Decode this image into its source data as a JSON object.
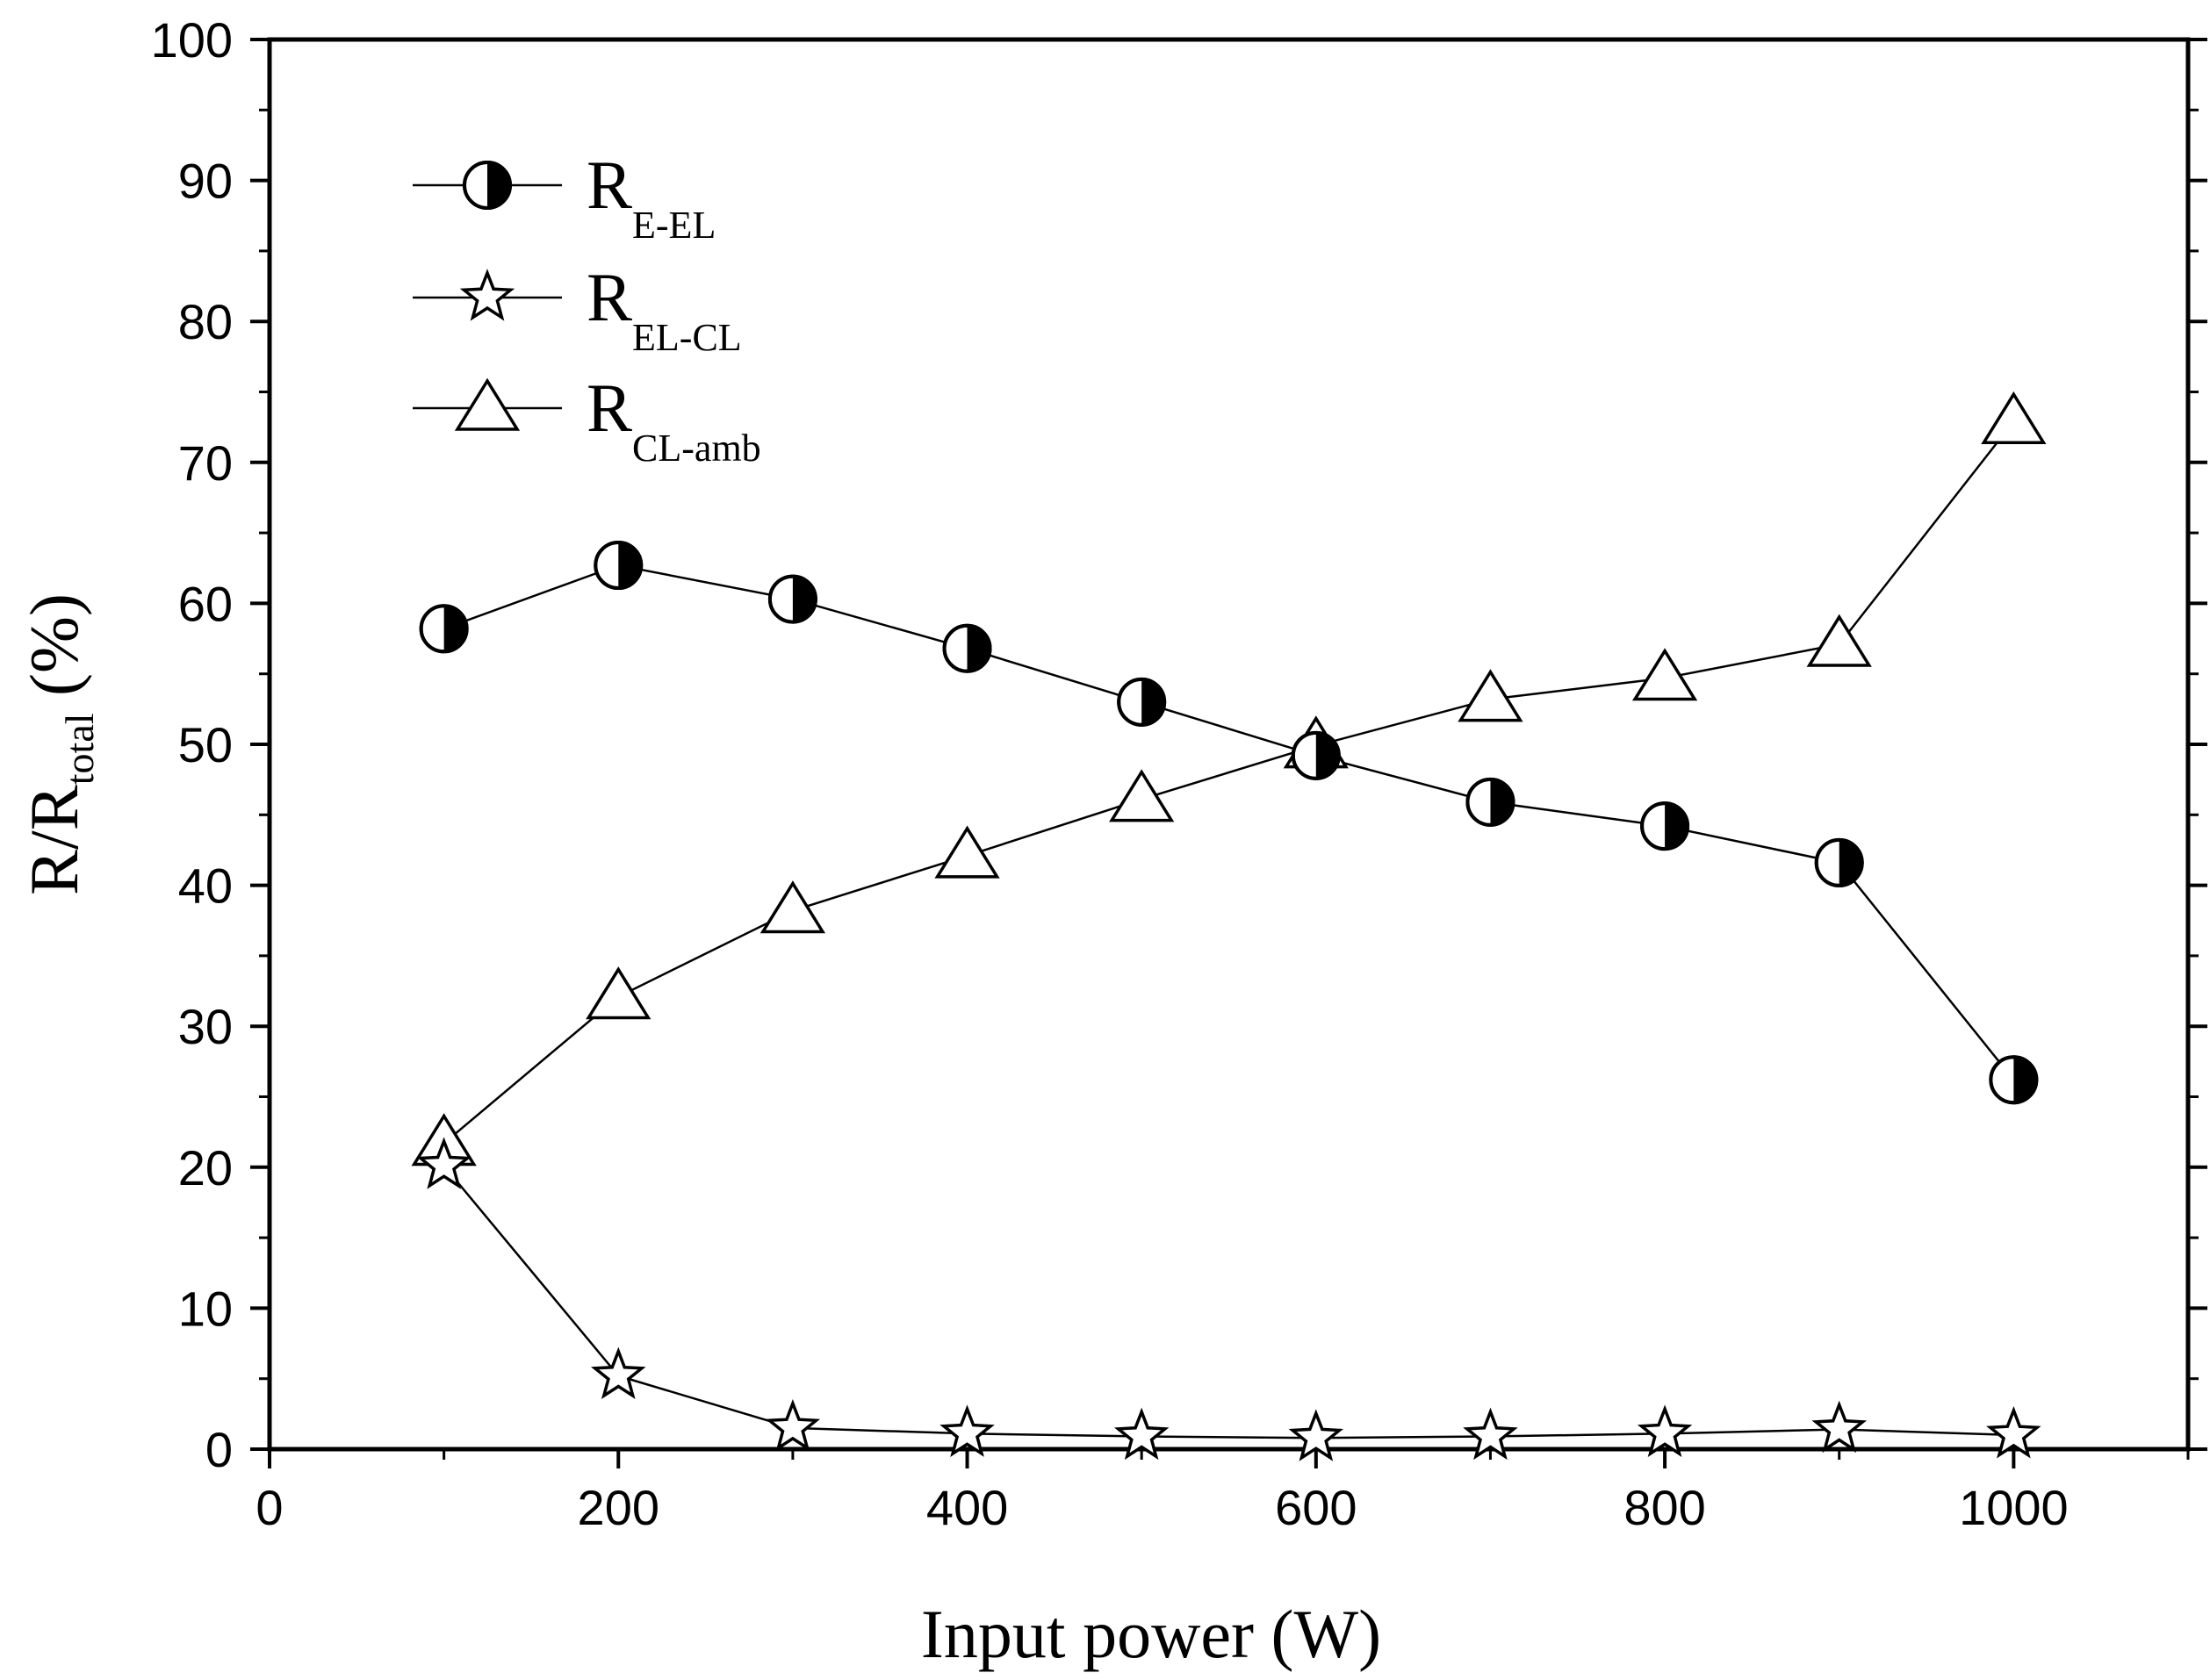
{
  "chart_data": {
    "type": "line",
    "title": "",
    "xlabel": "Input power (W)",
    "ylabel": {
      "prefix": "R/R",
      "subscript": "total",
      "suffix": " (%)"
    },
    "xlim": [
      0,
      1100
    ],
    "ylim": [
      0,
      100
    ],
    "x_ticks": [
      0,
      200,
      400,
      600,
      800,
      1000
    ],
    "y_ticks": [
      0,
      10,
      20,
      30,
      40,
      50,
      60,
      70,
      80,
      90,
      100
    ],
    "legend_position": "top-left",
    "x": [
      100,
      200,
      300,
      400,
      500,
      600,
      700,
      800,
      900,
      1000
    ],
    "series": [
      {
        "name": "R_E-EL",
        "label_main": "R",
        "label_sub": "E-EL",
        "marker": "half-filled-circle",
        "values": [
          58.2,
          62.7,
          60.3,
          56.8,
          53.0,
          49.2,
          45.9,
          44.2,
          41.6,
          26.2
        ]
      },
      {
        "name": "R_EL-CL",
        "label_main": "R",
        "label_sub": "EL-CL",
        "marker": "open-star",
        "values": [
          20.1,
          5.2,
          1.5,
          1.1,
          0.9,
          0.8,
          0.9,
          1.1,
          1.4,
          1.0
        ]
      },
      {
        "name": "R_CL-amb",
        "label_main": "R",
        "label_sub": "CL-amb",
        "marker": "open-triangle",
        "values": [
          21.7,
          32.1,
          38.2,
          42.1,
          46.1,
          49.9,
          53.2,
          54.7,
          57.1,
          72.9
        ]
      }
    ]
  }
}
